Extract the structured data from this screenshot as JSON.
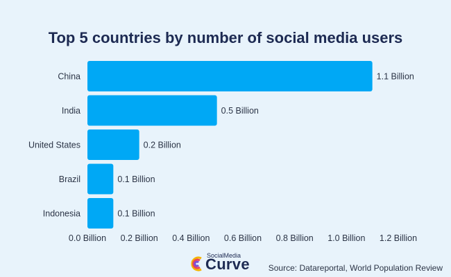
{
  "chart_data": {
    "type": "bar",
    "orientation": "horizontal",
    "title": "Top 5 countries by number of social media users",
    "categories": [
      "China",
      "India",
      "United States",
      "Brazil",
      "Indonesia"
    ],
    "values": [
      1.1,
      0.5,
      0.2,
      0.1,
      0.1
    ],
    "value_labels": [
      "1.1 Billion",
      "0.5 Billion",
      "0.2 Billion",
      "0.1 Billion",
      "0.1 Billion"
    ],
    "x_ticks": [
      "0.0 Billion",
      "0.2 Billion",
      "0.4 Billion",
      "0.6 Billion",
      "0.8 Billion",
      "1.0 Billion",
      "1.2 Billion"
    ],
    "xlim": [
      0,
      1.2
    ],
    "xlabel": "",
    "ylabel": "",
    "grid": false,
    "bar_color": "#00a8f5",
    "background_color": "#e8f3fb"
  },
  "logo": {
    "small_text": "SocialMedia",
    "big_text": "Curve"
  },
  "source": "Source: Datareportal, World Population Review"
}
